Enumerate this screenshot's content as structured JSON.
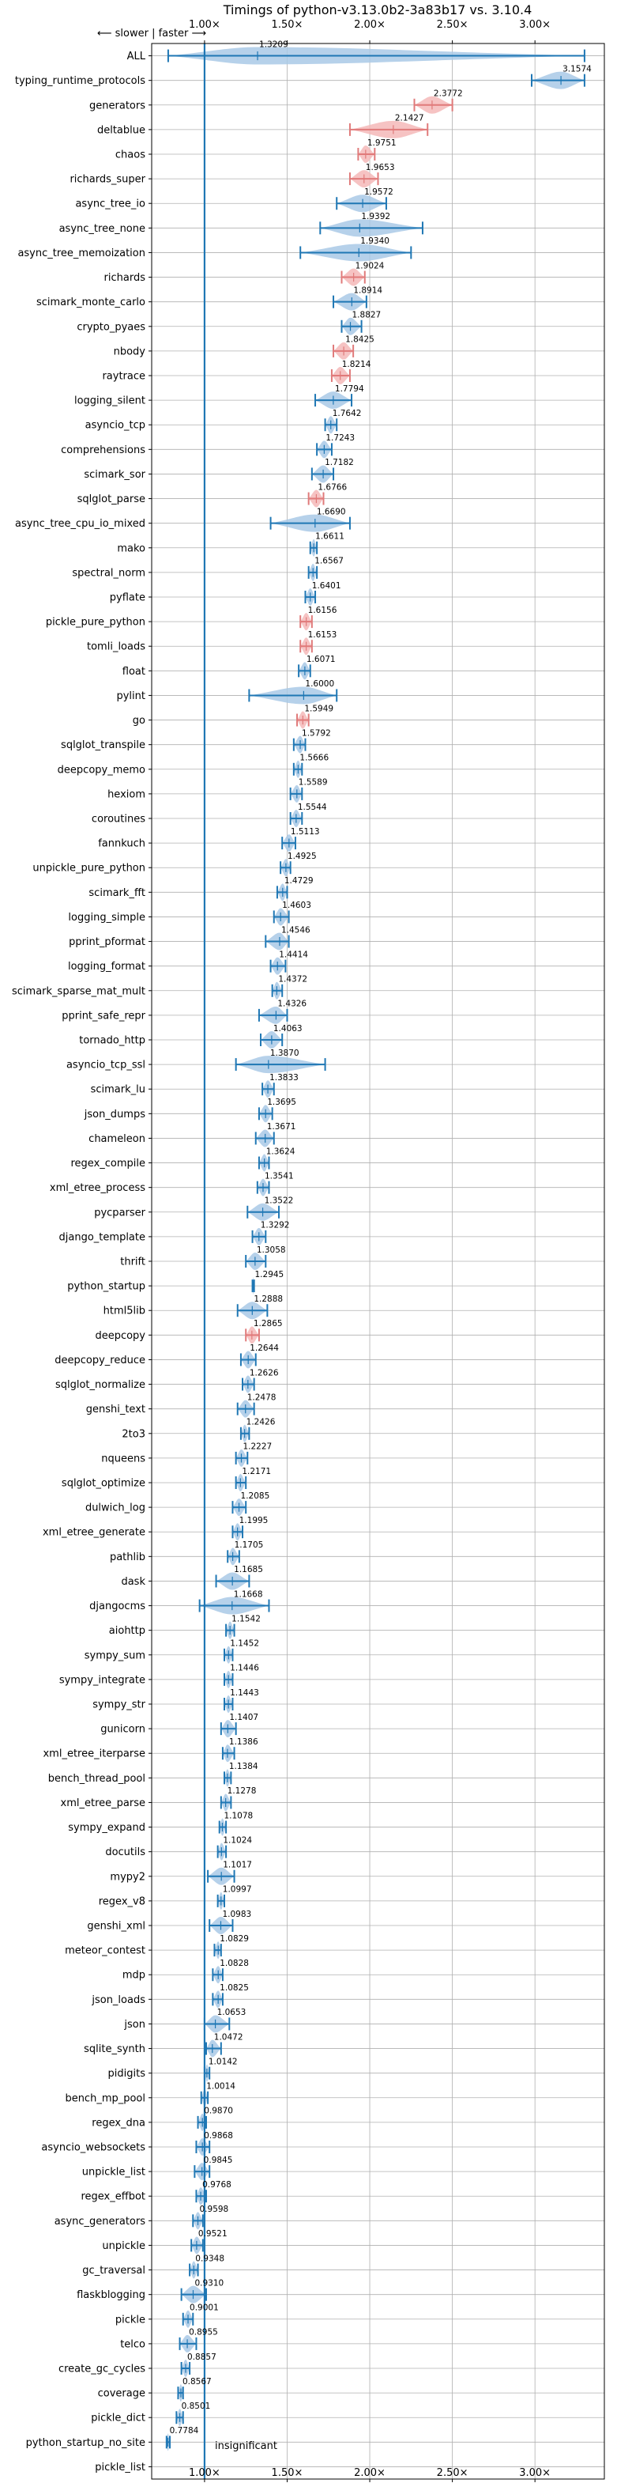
{
  "chart_data": {
    "type": "violin",
    "title": "Timings of python-v3.13.0b2-3a83b17 vs. 3.10.4",
    "xlim": [
      0.68,
      3.42
    ],
    "x_ticks": [
      1.0,
      1.5,
      2.0,
      2.5,
      3.0
    ],
    "x_tick_labels": [
      "1.00×",
      "1.50×",
      "2.00×",
      "2.50×",
      "3.00×"
    ],
    "direction_note": "⟵ slower | faster ⟶",
    "reference_x": 1.0,
    "insignificant_label": "insignificant",
    "grid": true,
    "colors": {
      "faster": "#1f77b4",
      "faster_fill": "#a9c9e6",
      "slower": "#e07a7a",
      "slower_fill": "#f4b8b8",
      "reference": "#1f77b4"
    },
    "categories": [
      "ALL",
      "typing_runtime_protocols",
      "generators",
      "deltablue",
      "chaos",
      "richards_super",
      "async_tree_io",
      "async_tree_none",
      "async_tree_memoization",
      "richards",
      "scimark_monte_carlo",
      "crypto_pyaes",
      "nbody",
      "raytrace",
      "logging_silent",
      "asyncio_tcp",
      "comprehensions",
      "scimark_sor",
      "sqlglot_parse",
      "async_tree_cpu_io_mixed",
      "mako",
      "spectral_norm",
      "pyflate",
      "pickle_pure_python",
      "tomli_loads",
      "float",
      "pylint",
      "go",
      "sqlglot_transpile",
      "deepcopy_memo",
      "hexiom",
      "coroutines",
      "fannkuch",
      "unpickle_pure_python",
      "scimark_fft",
      "logging_simple",
      "pprint_pformat",
      "logging_format",
      "scimark_sparse_mat_mult",
      "pprint_safe_repr",
      "tornado_http",
      "asyncio_tcp_ssl",
      "scimark_lu",
      "json_dumps",
      "chameleon",
      "regex_compile",
      "xml_etree_process",
      "pycparser",
      "django_template",
      "thrift",
      "python_startup",
      "html5lib",
      "deepcopy",
      "deepcopy_reduce",
      "sqlglot_normalize",
      "genshi_text",
      "2to3",
      "nqueens",
      "sqlglot_optimize",
      "dulwich_log",
      "xml_etree_generate",
      "pathlib",
      "dask",
      "djangocms",
      "aiohttp",
      "sympy_sum",
      "sympy_integrate",
      "sympy_str",
      "gunicorn",
      "xml_etree_iterparse",
      "bench_thread_pool",
      "xml_etree_parse",
      "sympy_expand",
      "docutils",
      "mypy2",
      "regex_v8",
      "genshi_xml",
      "meteor_contest",
      "mdp",
      "json_loads",
      "json",
      "sqlite_synth",
      "pidigits",
      "bench_mp_pool",
      "regex_dna",
      "asyncio_websockets",
      "unpickle_list",
      "regex_effbot",
      "async_generators",
      "unpickle",
      "gc_traversal",
      "flaskblogging",
      "pickle",
      "telco",
      "create_gc_cycles",
      "coverage",
      "pickle_dict",
      "python_startup_no_site",
      "pickle_list"
    ],
    "values": [
      1.3209,
      3.1574,
      2.3772,
      2.1427,
      1.9751,
      1.9653,
      1.9572,
      1.9392,
      1.934,
      1.9024,
      1.8914,
      1.8827,
      1.8425,
      1.8214,
      1.7794,
      1.7642,
      1.7243,
      1.7182,
      1.6766,
      1.669,
      1.6611,
      1.6567,
      1.6401,
      1.6156,
      1.6153,
      1.6071,
      1.6,
      1.5949,
      1.5792,
      1.5666,
      1.5589,
      1.5544,
      1.5113,
      1.4925,
      1.4729,
      1.4603,
      1.4546,
      1.4414,
      1.4372,
      1.4326,
      1.4063,
      1.387,
      1.3833,
      1.3695,
      1.3671,
      1.3624,
      1.3541,
      1.3522,
      1.3292,
      1.3058,
      1.2945,
      1.2888,
      1.2865,
      1.2644,
      1.2626,
      1.2478,
      1.2426,
      1.2227,
      1.2171,
      1.2085,
      1.1995,
      1.1705,
      1.1685,
      1.1668,
      1.1542,
      1.1452,
      1.1446,
      1.1443,
      1.1407,
      1.1386,
      1.1384,
      1.1278,
      1.1078,
      1.1024,
      1.1017,
      1.0997,
      1.0983,
      1.0829,
      1.0828,
      1.0825,
      1.0653,
      1.0472,
      1.0142,
      1.0014,
      0.987,
      0.9868,
      0.9845,
      0.9768,
      0.9598,
      0.9521,
      0.9348,
      0.931,
      0.9001,
      0.8955,
      0.8857,
      0.8567,
      0.8501,
      0.7784,
      null
    ],
    "value_labels": [
      "1.3209",
      "3.1574",
      "2.3772",
      "2.1427",
      "1.9751",
      "1.9653",
      "1.9572",
      "1.9392",
      "1.9340",
      "1.9024",
      "1.8914",
      "1.8827",
      "1.8425",
      "1.8214",
      "1.7794",
      "1.7642",
      "1.7243",
      "1.7182",
      "1.6766",
      "1.6690",
      "1.6611",
      "1.6567",
      "1.6401",
      "1.6156",
      "1.6153",
      "1.6071",
      "1.6000",
      "1.5949",
      "1.5792",
      "1.5666",
      "1.5589",
      "1.5544",
      "1.5113",
      "1.4925",
      "1.4729",
      "1.4603",
      "1.4546",
      "1.4414",
      "1.4372",
      "1.4326",
      "1.4063",
      "1.3870",
      "1.3833",
      "1.3695",
      "1.3671",
      "1.3624",
      "1.3541",
      "1.3522",
      "1.3292",
      "1.3058",
      "1.2945",
      "1.2888",
      "1.2865",
      "1.2644",
      "1.2626",
      "1.2478",
      "1.2426",
      "1.2227",
      "1.2171",
      "1.2085",
      "1.1995",
      "1.1705",
      "1.1685",
      "1.1668",
      "1.1542",
      "1.1452",
      "1.1446",
      "1.1443",
      "1.1407",
      "1.1386",
      "1.1384",
      "1.1278",
      "1.1078",
      "1.1024",
      "1.1017",
      "1.0997",
      "1.0983",
      "1.0829",
      "1.0828",
      "1.0825",
      "1.0653",
      "1.0472",
      "1.0142",
      "1.0014",
      "0.9870",
      "0.9868",
      "0.9845",
      "0.9768",
      "0.9598",
      "0.9521",
      "0.9348",
      "0.9310",
      "0.9001",
      "0.8955",
      "0.8857",
      "0.8567",
      "0.8501",
      "0.7784",
      ""
    ],
    "slower_marked": [
      "generators",
      "deltablue",
      "chaos",
      "richards_super",
      "richards",
      "nbody",
      "raytrace",
      "sqlglot_parse",
      "pickle_pure_python",
      "tomli_loads",
      "go",
      "deepcopy"
    ],
    "ranges": {
      "ALL": [
        0.78,
        3.3
      ],
      "typing_runtime_protocols": [
        2.98,
        3.3
      ],
      "generators": [
        2.27,
        2.5
      ],
      "deltablue": [
        1.88,
        2.35
      ],
      "chaos": [
        1.93,
        2.03
      ],
      "richards_super": [
        1.88,
        2.05
      ],
      "async_tree_io": [
        1.8,
        2.1
      ],
      "async_tree_none": [
        1.7,
        2.32
      ],
      "async_tree_memoization": [
        1.58,
        2.25
      ],
      "richards": [
        1.83,
        1.97
      ],
      "scimark_monte_carlo": [
        1.78,
        1.98
      ],
      "crypto_pyaes": [
        1.83,
        1.95
      ],
      "nbody": [
        1.78,
        1.9
      ],
      "raytrace": [
        1.77,
        1.88
      ],
      "logging_silent": [
        1.67,
        1.89
      ],
      "asyncio_tcp": [
        1.73,
        1.8
      ],
      "comprehensions": [
        1.68,
        1.77
      ],
      "scimark_sor": [
        1.65,
        1.78
      ],
      "sqlglot_parse": [
        1.63,
        1.72
      ],
      "async_tree_cpu_io_mixed": [
        1.4,
        1.88
      ],
      "mako": [
        1.64,
        1.68
      ],
      "spectral_norm": [
        1.63,
        1.68
      ],
      "pyflate": [
        1.61,
        1.67
      ],
      "pickle_pure_python": [
        1.58,
        1.65
      ],
      "tomli_loads": [
        1.58,
        1.65
      ],
      "float": [
        1.57,
        1.64
      ],
      "pylint": [
        1.27,
        1.8
      ],
      "go": [
        1.56,
        1.63
      ],
      "sqlglot_transpile": [
        1.54,
        1.61
      ],
      "deepcopy_memo": [
        1.54,
        1.59
      ],
      "hexiom": [
        1.52,
        1.59
      ],
      "coroutines": [
        1.52,
        1.59
      ],
      "fannkuch": [
        1.47,
        1.55
      ],
      "unpickle_pure_python": [
        1.46,
        1.52
      ],
      "scimark_fft": [
        1.44,
        1.5
      ],
      "logging_simple": [
        1.42,
        1.51
      ],
      "pprint_pformat": [
        1.37,
        1.51
      ],
      "logging_format": [
        1.4,
        1.49
      ],
      "scimark_sparse_mat_mult": [
        1.41,
        1.47
      ],
      "pprint_safe_repr": [
        1.33,
        1.5
      ],
      "tornado_http": [
        1.34,
        1.47
      ],
      "asyncio_tcp_ssl": [
        1.19,
        1.73
      ],
      "scimark_lu": [
        1.35,
        1.42
      ],
      "json_dumps": [
        1.33,
        1.41
      ],
      "chameleon": [
        1.31,
        1.42
      ],
      "regex_compile": [
        1.33,
        1.39
      ],
      "xml_etree_process": [
        1.32,
        1.39
      ],
      "pycparser": [
        1.26,
        1.45
      ],
      "django_template": [
        1.29,
        1.37
      ],
      "thrift": [
        1.25,
        1.37
      ],
      "python_startup": [
        1.29,
        1.3
      ],
      "html5lib": [
        1.2,
        1.38
      ],
      "deepcopy": [
        1.25,
        1.33
      ],
      "deepcopy_reduce": [
        1.22,
        1.31
      ],
      "sqlglot_normalize": [
        1.23,
        1.3
      ],
      "genshi_text": [
        1.2,
        1.3
      ],
      "2to3": [
        1.22,
        1.27
      ],
      "nqueens": [
        1.19,
        1.26
      ],
      "sqlglot_optimize": [
        1.19,
        1.25
      ],
      "dulwich_log": [
        1.17,
        1.25
      ],
      "xml_etree_generate": [
        1.17,
        1.23
      ],
      "pathlib": [
        1.14,
        1.21
      ],
      "dask": [
        1.07,
        1.27
      ],
      "djangocms": [
        0.97,
        1.39
      ],
      "aiohttp": [
        1.13,
        1.18
      ],
      "sympy_sum": [
        1.12,
        1.17
      ],
      "sympy_integrate": [
        1.12,
        1.17
      ],
      "sympy_str": [
        1.12,
        1.17
      ],
      "gunicorn": [
        1.1,
        1.19
      ],
      "xml_etree_iterparse": [
        1.11,
        1.18
      ],
      "bench_thread_pool": [
        1.12,
        1.16
      ],
      "xml_etree_parse": [
        1.1,
        1.16
      ],
      "sympy_expand": [
        1.09,
        1.13
      ],
      "docutils": [
        1.08,
        1.13
      ],
      "mypy2": [
        1.02,
        1.18
      ],
      "regex_v8": [
        1.08,
        1.12
      ],
      "genshi_xml": [
        1.03,
        1.17
      ],
      "meteor_contest": [
        1.06,
        1.1
      ],
      "mdp": [
        1.05,
        1.11
      ],
      "json_loads": [
        1.05,
        1.11
      ],
      "json": [
        1.0,
        1.15
      ],
      "sqlite_synth": [
        1.01,
        1.1
      ],
      "pidigits": [
        1.0,
        1.03
      ],
      "bench_mp_pool": [
        0.98,
        1.02
      ],
      "regex_dna": [
        0.96,
        1.01
      ],
      "asyncio_websockets": [
        0.95,
        1.03
      ],
      "unpickle_list": [
        0.94,
        1.03
      ],
      "regex_effbot": [
        0.95,
        1.01
      ],
      "async_generators": [
        0.93,
        0.99
      ],
      "unpickle": [
        0.92,
        0.99
      ],
      "gc_traversal": [
        0.91,
        0.96
      ],
      "flaskblogging": [
        0.86,
        1.01
      ],
      "pickle": [
        0.87,
        0.93
      ],
      "telco": [
        0.85,
        0.95
      ],
      "create_gc_cycles": [
        0.86,
        0.91
      ],
      "coverage": [
        0.84,
        0.87
      ],
      "pickle_dict": [
        0.83,
        0.87
      ],
      "python_startup_no_site": [
        0.77,
        0.79
      ]
    }
  }
}
